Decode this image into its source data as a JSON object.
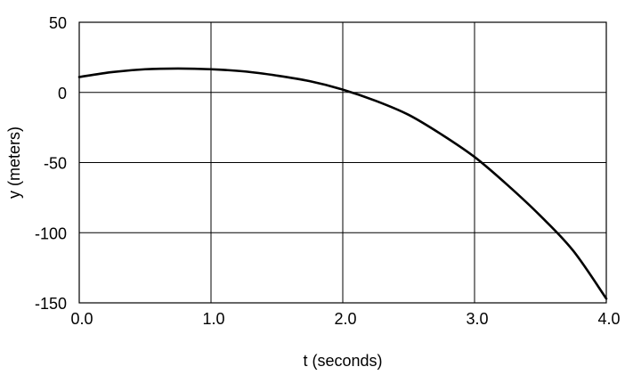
{
  "chart_data": {
    "type": "line",
    "title": "",
    "xlabel": "t (seconds)",
    "ylabel": "y (meters)",
    "xlim": [
      0,
      4
    ],
    "ylim": [
      -150,
      50
    ],
    "grid": true,
    "x_ticks": [
      0,
      1,
      2,
      3,
      4
    ],
    "x_tick_labels": [
      "0.0",
      "1.0",
      "2.0",
      "3.0",
      "4.0"
    ],
    "y_ticks": [
      50,
      0,
      -50,
      -100,
      -150
    ],
    "y_tick_labels": [
      "50",
      "0",
      "-50",
      "-100",
      "-150"
    ],
    "series": [
      {
        "x": [
          0,
          0.25,
          0.5,
          0.75,
          1.0,
          1.25,
          1.5,
          1.75,
          2.0,
          2.25,
          2.5,
          2.75,
          3.0,
          3.25,
          3.5,
          3.75,
          4.0
        ],
        "values": [
          11,
          14.5,
          16.5,
          17,
          16.5,
          15,
          12,
          8,
          2,
          -6,
          -16,
          -30,
          -46,
          -66,
          -88,
          -113,
          -147
        ]
      }
    ]
  }
}
